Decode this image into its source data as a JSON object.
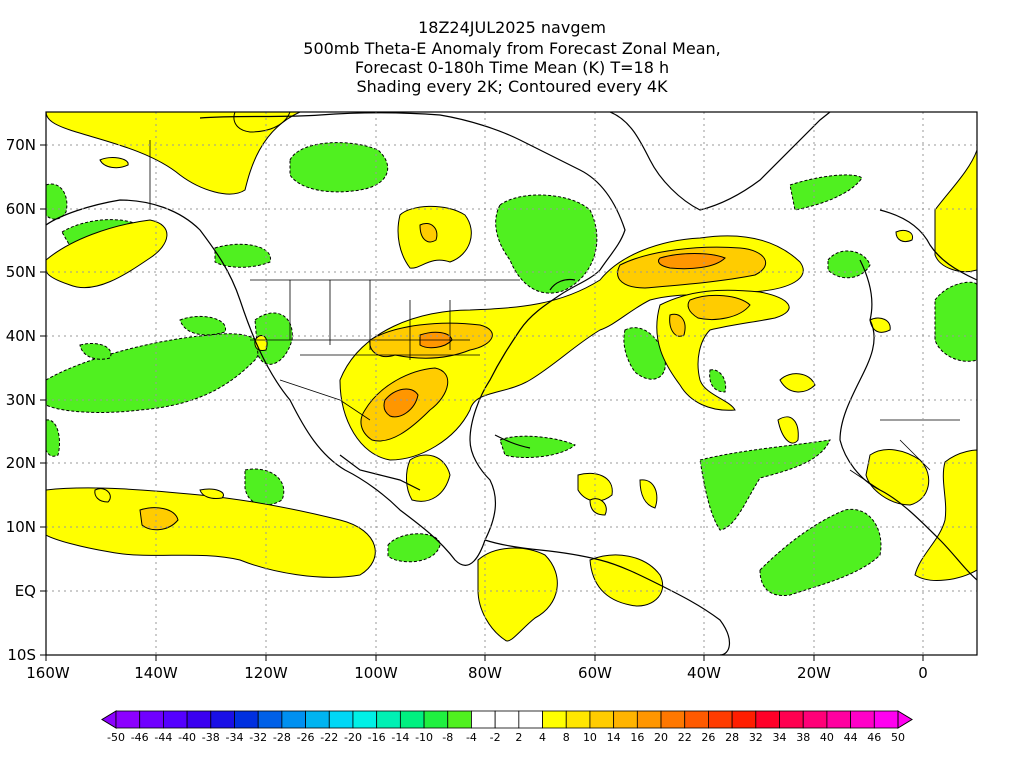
{
  "header": {
    "line1": "18Z24JUL2025 navgem",
    "line2": "500mb Theta-E Anomaly from Forecast Zonal Mean,",
    "line3": "Forecast 0-180h Time Mean (K) T=18 h",
    "line4": "Shading every 2K; Contoured every 4K"
  },
  "axes": {
    "lat_labels": [
      "70N",
      "60N",
      "50N",
      "40N",
      "30N",
      "20N",
      "10N",
      "EQ",
      "10S"
    ],
    "lon_labels": [
      "160W",
      "140W",
      "120W",
      "100W",
      "80W",
      "60W",
      "40W",
      "20W",
      "0"
    ],
    "lat_range": [
      -10,
      75
    ],
    "lon_range": [
      -160,
      10
    ],
    "grid": "dotted"
  },
  "colorbar": {
    "labels": [
      "-50",
      "-46",
      "-44",
      "-40",
      "-38",
      "-34",
      "-32",
      "-28",
      "-26",
      "-22",
      "-20",
      "-16",
      "-14",
      "-10",
      "-8",
      "-4",
      "-2",
      "2",
      "4",
      "8",
      "10",
      "14",
      "16",
      "20",
      "22",
      "26",
      "28",
      "32",
      "34",
      "38",
      "40",
      "44",
      "46",
      "50"
    ],
    "colors": [
      "#8c00ff",
      "#7000ff",
      "#5500ff",
      "#3a00f0",
      "#1a10e6",
      "#0030e0",
      "#0060e8",
      "#0090f0",
      "#00b4f0",
      "#00d7f5",
      "#00f0e6",
      "#00f0b4",
      "#00f080",
      "#20f040",
      "#50f020",
      "#ffffff",
      "#ffffff",
      "#ffffff",
      "#ffff00",
      "#ffe600",
      "#ffcc00",
      "#ffb400",
      "#ff9600",
      "#ff7800",
      "#ff5a00",
      "#ff3c00",
      "#ff1e00",
      "#ff0028",
      "#ff0050",
      "#ff0078",
      "#ff00a0",
      "#ff00c8",
      "#ff00f0"
    ]
  },
  "legend_colors": {
    "positive_light": "#ffff00",
    "positive_mid": "#ffcc00",
    "positive_strong": "#ff9600",
    "negative": "#50f020"
  }
}
